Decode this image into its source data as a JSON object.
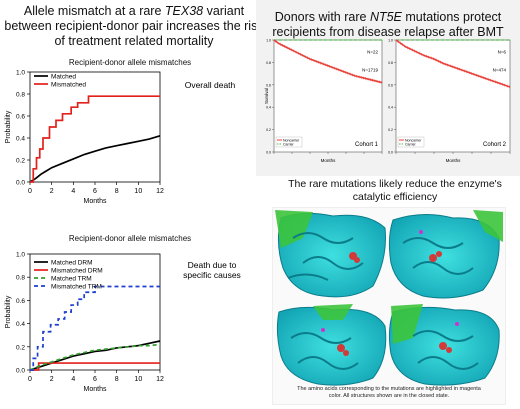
{
  "left_title": {
    "pre": "Allele mismatch at a rare ",
    "gene": "TEX38",
    "post1": " variant",
    "line2": "between recipient-donor pair increases the risk",
    "line3": "of treatment related mortality"
  },
  "right_title": {
    "pre": "Donors with rare ",
    "gene": "NT5E",
    "post": " mutations protect",
    "line2": "recipients from disease relapse after BMT"
  },
  "mid_title": {
    "line1": "The rare mutations likely reduce the enzyme's",
    "line2": "catalytic efficiency"
  },
  "caption": {
    "line1": "The amino acids corresponding to the mutations are highlighted in magenta",
    "line2": "color. All structures shown are in the closed state."
  },
  "colors": {
    "black": "#000000",
    "red": "#e3211c",
    "green": "#33a02c",
    "blue": "#1f3fcf",
    "km_red": "#e8413a",
    "km_green": "#4fc24f"
  },
  "chart_data": [
    {
      "type": "line",
      "title": "Recipient-donor allele mismatches",
      "annotation": "Overall death",
      "xlabel": "Months",
      "ylabel": "Probability",
      "xlim": [
        0,
        12
      ],
      "ylim": [
        0,
        1.0
      ],
      "xticks": [
        0,
        2,
        4,
        6,
        8,
        10,
        12
      ],
      "yticks": [
        0.0,
        0.2,
        0.4,
        0.6,
        0.8,
        1.0
      ],
      "series": [
        {
          "name": "Matched",
          "color": "#000000",
          "dash": "",
          "step": false,
          "x": [
            0,
            0.5,
            1,
            1.5,
            2,
            3,
            4,
            5,
            6,
            7,
            8,
            9,
            10,
            11,
            12
          ],
          "y": [
            0,
            0.03,
            0.07,
            0.1,
            0.13,
            0.17,
            0.21,
            0.25,
            0.28,
            0.31,
            0.33,
            0.35,
            0.37,
            0.39,
            0.42
          ]
        },
        {
          "name": "Mismatched",
          "color": "#e3211c",
          "dash": "",
          "step": true,
          "x": [
            0,
            0.3,
            0.6,
            0.9,
            1.2,
            1.8,
            2.4,
            3,
            3.8,
            4.4,
            5.4,
            6,
            12
          ],
          "y": [
            0,
            0.12,
            0.22,
            0.3,
            0.4,
            0.5,
            0.56,
            0.62,
            0.68,
            0.72,
            0.78,
            0.78,
            0.78
          ]
        }
      ]
    },
    {
      "type": "line",
      "title": "Recipient-donor allele mismatches",
      "annotation": "Death due to\nspecific causes",
      "xlabel": "Months",
      "ylabel": "Probability",
      "xlim": [
        0,
        12
      ],
      "ylim": [
        0,
        1.0
      ],
      "xticks": [
        0,
        2,
        4,
        6,
        8,
        10,
        12
      ],
      "yticks": [
        0.0,
        0.2,
        0.4,
        0.6,
        0.8,
        1.0
      ],
      "series": [
        {
          "name": "Matched DRM",
          "color": "#000000",
          "dash": "",
          "step": false,
          "x": [
            0,
            1,
            2,
            3,
            4,
            5,
            6,
            7,
            8,
            9,
            10,
            11,
            12
          ],
          "y": [
            0,
            0.03,
            0.06,
            0.09,
            0.12,
            0.14,
            0.16,
            0.17,
            0.19,
            0.2,
            0.21,
            0.23,
            0.25
          ]
        },
        {
          "name": "Mismatched DRM",
          "color": "#e3211c",
          "dash": "",
          "step": true,
          "x": [
            0,
            0.8,
            12
          ],
          "y": [
            0,
            0.06,
            0.06
          ]
        },
        {
          "name": "Matched TRM",
          "color": "#33a02c",
          "dash": "4,3",
          "step": false,
          "x": [
            0,
            1,
            2,
            3,
            4,
            5,
            6,
            7,
            8,
            9,
            10,
            11,
            12
          ],
          "y": [
            0,
            0.04,
            0.07,
            0.1,
            0.13,
            0.15,
            0.17,
            0.18,
            0.19,
            0.2,
            0.21,
            0.21,
            0.22
          ]
        },
        {
          "name": "Mismatched TRM",
          "color": "#1f3fcf",
          "dash": "4,3",
          "step": true,
          "x": [
            0,
            0.3,
            0.7,
            1.2,
            1.9,
            2.6,
            3.2,
            3.8,
            4.4,
            5,
            6,
            12
          ],
          "y": [
            0,
            0.1,
            0.2,
            0.33,
            0.39,
            0.44,
            0.5,
            0.56,
            0.61,
            0.67,
            0.72,
            0.72
          ]
        }
      ]
    },
    {
      "type": "line",
      "label": "Cohort 1",
      "ylabel": "Survival",
      "xlabel": "Months",
      "xlim": [
        0,
        12
      ],
      "ylim": [
        0,
        1.0
      ],
      "n_top": "N=22",
      "n_bottom": "N=1719",
      "legend": [
        "Noncarrier",
        "Carrier"
      ],
      "series": [
        {
          "name": "Carrier",
          "color": "#4fc24f",
          "dash": "3,2",
          "step": true,
          "x": [
            0,
            12
          ],
          "y": [
            1.0,
            1.0
          ]
        },
        {
          "name": "Noncarrier",
          "color": "#e8413a",
          "dash": "",
          "step": false,
          "x": [
            0,
            0.5,
            1,
            2,
            3,
            4,
            5,
            6,
            7,
            8,
            9,
            10,
            11,
            12
          ],
          "y": [
            1.0,
            0.97,
            0.95,
            0.91,
            0.87,
            0.83,
            0.8,
            0.77,
            0.74,
            0.71,
            0.68,
            0.66,
            0.64,
            0.62
          ]
        }
      ]
    },
    {
      "type": "line",
      "label": "Cohort 2",
      "ylabel": "",
      "xlabel": "Months",
      "xlim": [
        0,
        12
      ],
      "ylim": [
        0,
        1.0
      ],
      "n_top": "N=6",
      "n_bottom": "N=474",
      "legend": [
        "Noncarrier",
        "Carrier"
      ],
      "series": [
        {
          "name": "Carrier",
          "color": "#4fc24f",
          "dash": "3,2",
          "step": true,
          "x": [
            0,
            12
          ],
          "y": [
            1.0,
            1.0
          ]
        },
        {
          "name": "Noncarrier",
          "color": "#e8413a",
          "dash": "",
          "step": false,
          "x": [
            0,
            0.5,
            1,
            2,
            3,
            4,
            5,
            6,
            7,
            8,
            9,
            10,
            11,
            12
          ],
          "y": [
            1.0,
            0.97,
            0.94,
            0.9,
            0.86,
            0.83,
            0.79,
            0.76,
            0.73,
            0.7,
            0.67,
            0.64,
            0.61,
            0.58
          ]
        }
      ]
    }
  ]
}
